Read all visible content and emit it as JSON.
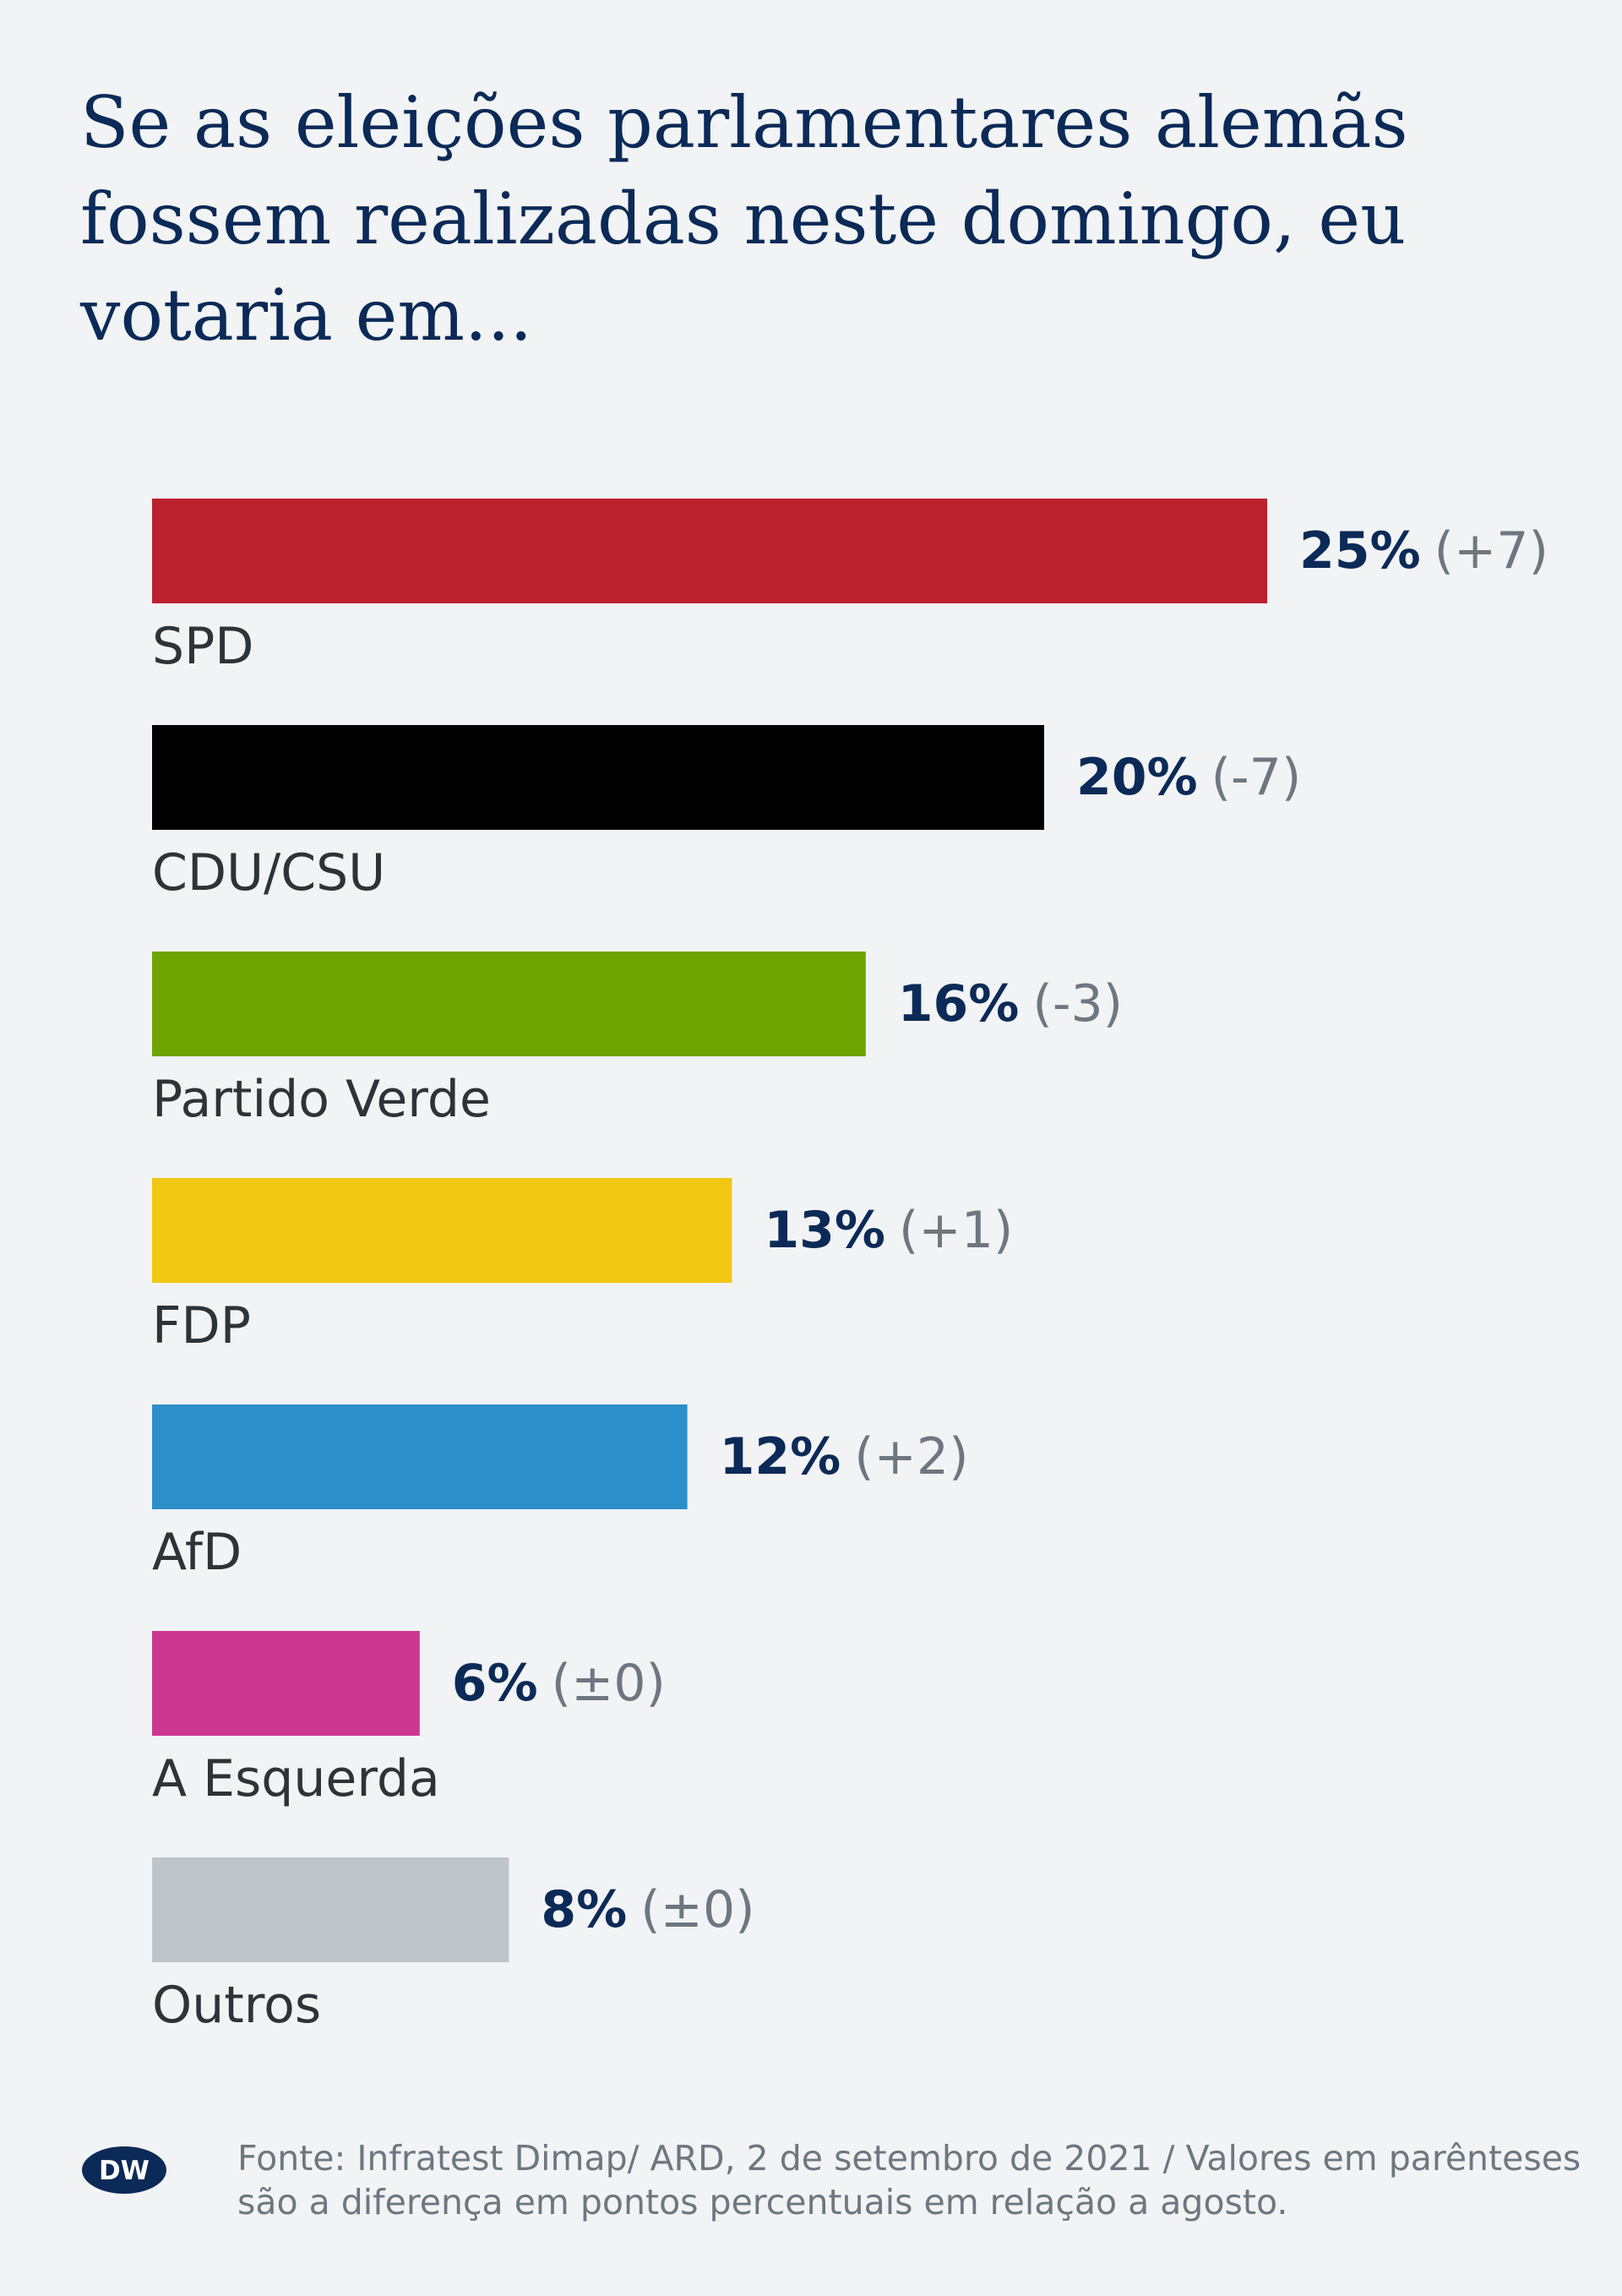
{
  "title": "Se as eleições parlamentares alemãs fossem realizadas neste domingo, eu votaria em...",
  "footer": {
    "logo_text": "DW",
    "source": "Fonte: Infratest Dimap/ ARD, 2 de setembro de 2021 / Valores em parênteses são a diferença em pontos percentuais em relação a agosto."
  },
  "colors": {
    "background": "#f1f3f5",
    "title": "#0b2a57",
    "value_text": "#0b2a57",
    "delta_text": "#6e7780",
    "category_text": "#2e3338"
  },
  "chart_data": {
    "type": "bar",
    "orientation": "horizontal",
    "title": "Se as eleições parlamentares alemãs fossem realizadas neste domingo, eu votaria em...",
    "unit": "%",
    "categories": [
      "SPD",
      "CDU/CSU",
      "Partido Verde",
      "FDP",
      "AfD",
      "A Esquerda",
      "Outros"
    ],
    "values": [
      25,
      20,
      16,
      13,
      12,
      6,
      8
    ],
    "value_labels": [
      "25%",
      "20%",
      "16%",
      "13%",
      "12%",
      "6%",
      "8%"
    ],
    "change_labels": [
      "(+7)",
      "(-7)",
      "(-3)",
      "(+1)",
      "(+2)",
      "(±0)",
      "(±0)"
    ],
    "change_values": [
      7,
      -7,
      -3,
      1,
      2,
      0,
      0
    ],
    "bar_colors": [
      "#bc212f",
      "#000000",
      "#6ea300",
      "#f0c711",
      "#2d8fc9",
      "#cc3690",
      "#bdc4ca"
    ],
    "xlim": [
      0,
      25
    ],
    "grid": false,
    "legend": "none"
  }
}
